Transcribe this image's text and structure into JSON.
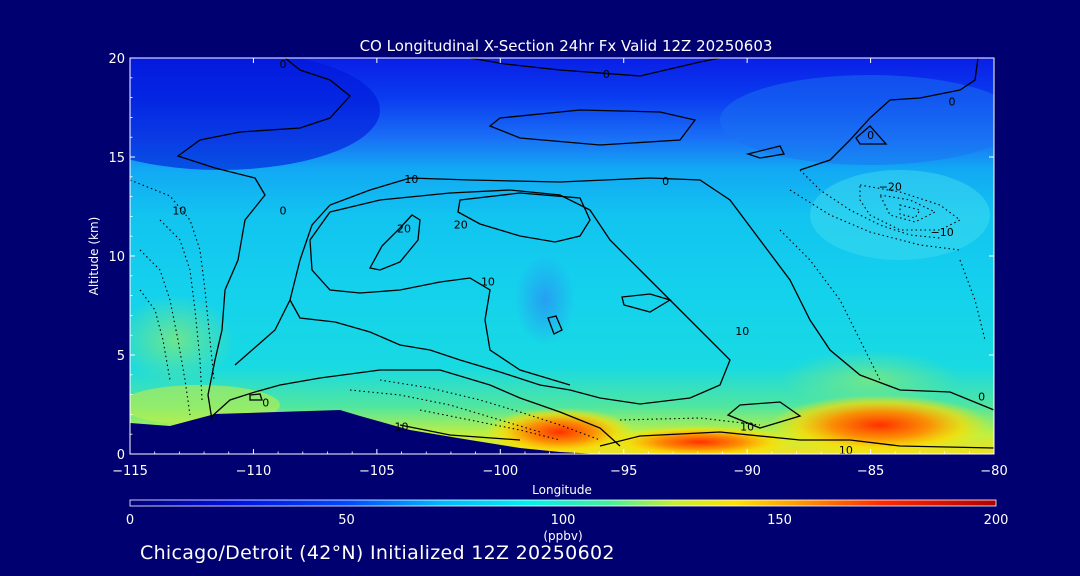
{
  "chart_data": {
    "type": "heatmap",
    "title": "CO Longitudinal X-Section 24hr  Fx Valid 12Z 20250603",
    "xlabel": "Longitude",
    "ylabel": "Altitude (km)",
    "xlim": [
      -115,
      -80
    ],
    "ylim": [
      0,
      20
    ],
    "x_ticks": [
      -115,
      -110,
      -105,
      -100,
      -95,
      -90,
      -85,
      -80
    ],
    "x_tick_labels": [
      "−115",
      "−110",
      "−105",
      "−100",
      "−95",
      "−90",
      "−85",
      "−80"
    ],
    "y_ticks": [
      0,
      5,
      10,
      15,
      20
    ],
    "y_tick_labels": [
      "0",
      "5",
      "10",
      "15",
      "20"
    ],
    "colorbar": {
      "label": "(ppbv)",
      "range": [
        0,
        200
      ],
      "ticks": [
        0,
        50,
        100,
        150,
        200
      ],
      "tick_labels": [
        "0",
        "50",
        "100",
        "150",
        "200"
      ]
    },
    "field_levels_ppbv": [
      {
        "z_km": 20,
        "co_ppbv": 35
      },
      {
        "z_km": 15,
        "co_ppbv": 60
      },
      {
        "z_km": 12,
        "co_ppbv": 90
      },
      {
        "z_km": 8,
        "co_ppbv": 95
      },
      {
        "z_km": 4,
        "co_ppbv": 100
      },
      {
        "z_km": 2,
        "co_ppbv": 120
      },
      {
        "z_km": 1,
        "co_ppbv": 150
      }
    ],
    "hotspots": [
      {
        "lon": -97.5,
        "z_km": 1.0,
        "co_ppbv": 170
      },
      {
        "lon": -92,
        "z_km": 0.6,
        "co_ppbv": 160
      },
      {
        "lon": -85,
        "z_km": 1.5,
        "co_ppbv": 165
      },
      {
        "lon": -111,
        "z_km": 3.0,
        "co_ppbv": 115
      }
    ],
    "contour_labels": [
      {
        "text": "0",
        "lon": -108.8,
        "z_km": 19.7
      },
      {
        "text": "0",
        "lon": -95.7,
        "z_km": 19.2
      },
      {
        "text": "0",
        "lon": -81.7,
        "z_km": 17.8
      },
      {
        "text": "0",
        "lon": -85.0,
        "z_km": 16.1
      },
      {
        "text": "0",
        "lon": -108.8,
        "z_km": 12.3
      },
      {
        "text": "10",
        "lon": -113.0,
        "z_km": 12.3
      },
      {
        "text": "10",
        "lon": -103.6,
        "z_km": 13.9
      },
      {
        "text": "20",
        "lon": -103.9,
        "z_km": 11.4
      },
      {
        "text": "20",
        "lon": -101.6,
        "z_km": 11.6
      },
      {
        "text": "0",
        "lon": -93.3,
        "z_km": 13.8
      },
      {
        "text": "−20",
        "lon": -84.2,
        "z_km": 13.5
      },
      {
        "text": "−10",
        "lon": -82.1,
        "z_km": 11.2
      },
      {
        "text": "10",
        "lon": -100.5,
        "z_km": 8.7
      },
      {
        "text": "10",
        "lon": -90.2,
        "z_km": 6.2
      },
      {
        "text": "0",
        "lon": -80.5,
        "z_km": 2.9
      },
      {
        "text": "0",
        "lon": -109.5,
        "z_km": 2.6
      },
      {
        "text": "10",
        "lon": -104.0,
        "z_km": 1.4
      },
      {
        "text": "10",
        "lon": -90.0,
        "z_km": 1.4
      },
      {
        "text": "10",
        "lon": -86.0,
        "z_km": 0.2
      }
    ]
  },
  "footer": {
    "text": "Chicago/Detroit (42°N) Initialized 12Z 20250602"
  }
}
